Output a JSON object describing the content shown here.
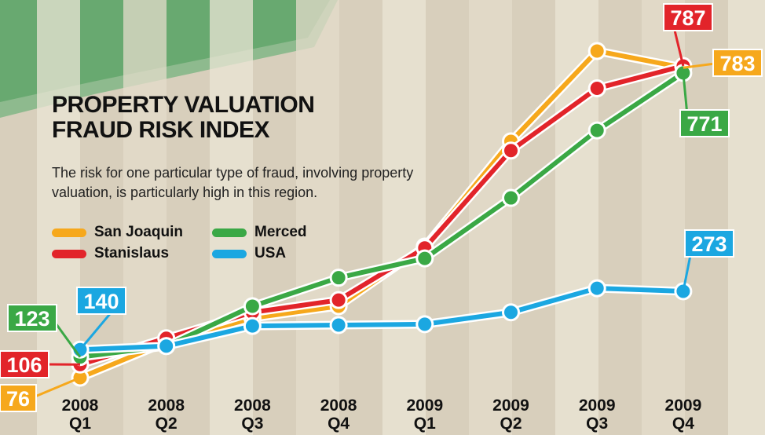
{
  "chart_data": {
    "type": "line",
    "title": "PROPERTY VALUATION FRAUD RISK INDEX",
    "subtitle": "The risk for one particular type of fraud, involving property valuation, is particularly high in this region.",
    "categories": [
      "2008 Q1",
      "2008 Q2",
      "2008 Q3",
      "2008 Q4",
      "2009 Q1",
      "2009 Q2",
      "2009 Q3",
      "2009 Q4"
    ],
    "series": [
      {
        "name": "San Joaquin",
        "color": "#f6a81c",
        "values": [
          76,
          157,
          212,
          239,
          375,
          615,
          821,
          783
        ]
      },
      {
        "name": "Stanislaus",
        "color": "#e2242a",
        "values": [
          106,
          166,
          225,
          253,
          372,
          594,
          736,
          787
        ]
      },
      {
        "name": "Merced",
        "color": "#3aa845",
        "values": [
          123,
          148,
          239,
          304,
          348,
          486,
          640,
          771
        ]
      },
      {
        "name": "USA",
        "color": "#1ba7e1",
        "values": [
          140,
          148,
          194,
          196,
          198,
          225,
          280,
          273
        ]
      }
    ]
  }
}
